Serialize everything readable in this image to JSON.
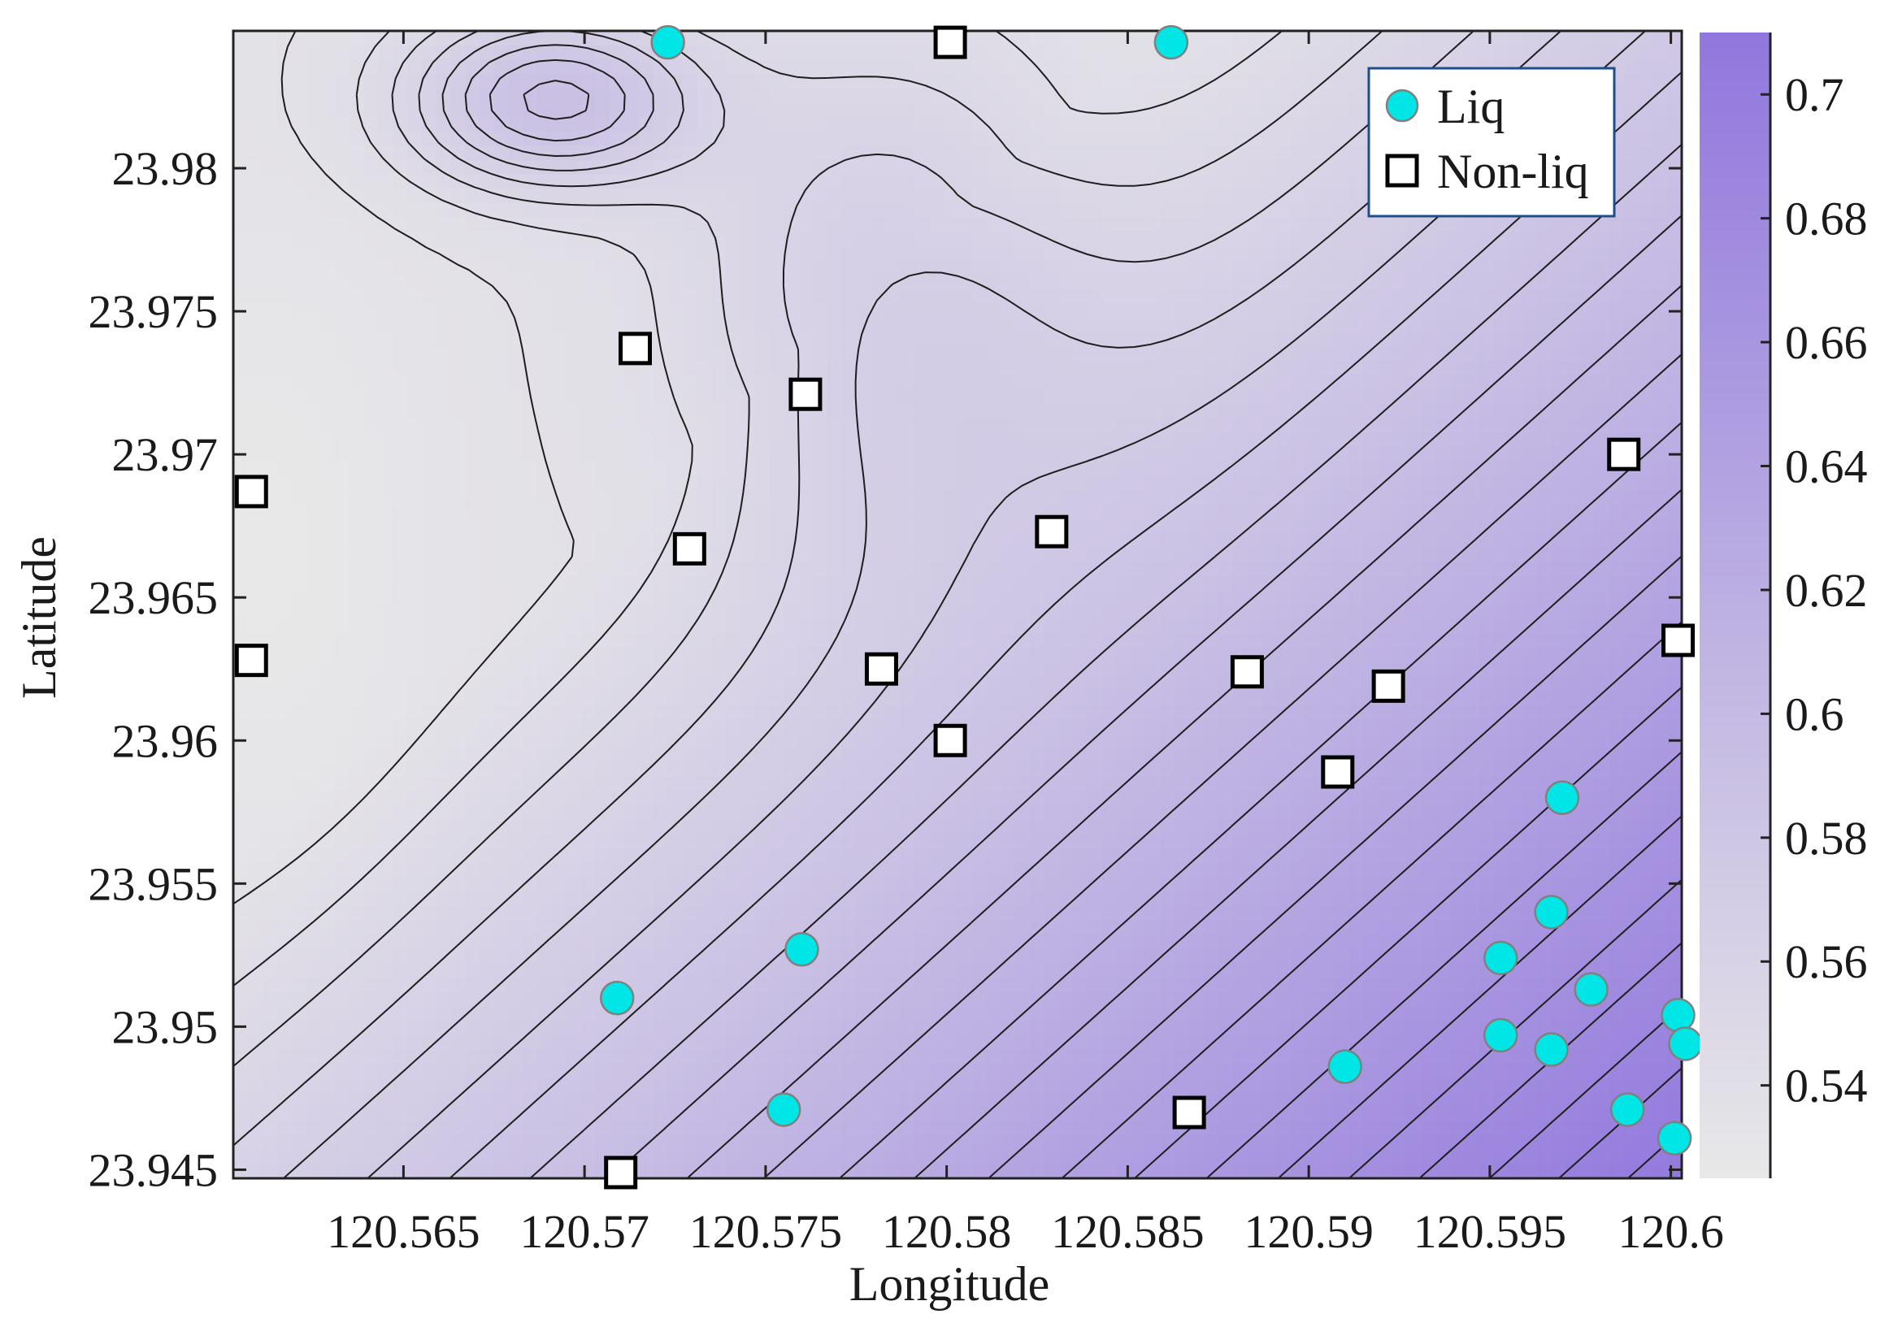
{
  "chart_data": {
    "type": "contour",
    "xlabel": "Longitude",
    "ylabel": "Latitude",
    "xlim": [
      120.5603,
      120.6003
    ],
    "ylim": [
      23.9447,
      23.9848
    ],
    "x_ticks": [
      120.565,
      120.57,
      120.575,
      120.58,
      120.585,
      120.59,
      120.595,
      120.6
    ],
    "x_tick_labels": [
      "120.565",
      "120.57",
      "120.575",
      "120.58",
      "120.585",
      "120.59",
      "120.595",
      "120.6"
    ],
    "y_ticks": [
      23.945,
      23.95,
      23.955,
      23.96,
      23.965,
      23.97,
      23.975,
      23.98
    ],
    "y_tick_labels": [
      "23.945",
      "23.95",
      "23.955",
      "23.96",
      "23.965",
      "23.97",
      "23.975",
      "23.98"
    ],
    "colorbar": {
      "range": [
        0.525,
        0.71
      ],
      "ticks": [
        0.54,
        0.56,
        0.58,
        0.6,
        0.62,
        0.64,
        0.66,
        0.68,
        0.7
      ],
      "tick_labels": [
        "0.54",
        "0.56",
        "0.58",
        "0.6",
        "0.62",
        "0.64",
        "0.66",
        "0.68",
        "0.7"
      ],
      "color_low": "#e8e8e8",
      "color_high": "#9177dd"
    },
    "legend": {
      "placement": "top-right"
    },
    "series": [
      {
        "name": "Liq",
        "marker": "circle",
        "color": "#00e5e5",
        "points": [
          [
            120.5723,
            23.9844
          ],
          [
            120.5862,
            23.9844
          ],
          [
            120.5709,
            23.951
          ],
          [
            120.576,
            23.9527
          ],
          [
            120.5755,
            23.9471
          ],
          [
            120.591,
            23.9486
          ],
          [
            120.5953,
            23.9497
          ],
          [
            120.5967,
            23.9492
          ],
          [
            120.5953,
            23.9524
          ],
          [
            120.5967,
            23.954
          ],
          [
            120.5978,
            23.9513
          ],
          [
            120.597,
            23.958
          ],
          [
            120.5988,
            23.9471
          ],
          [
            120.6001,
            23.9461
          ],
          [
            120.6002,
            23.9504
          ],
          [
            120.6004,
            23.9494
          ]
        ]
      },
      {
        "name": "Non-liq",
        "marker": "square",
        "color": "#ffffff",
        "points": [
          [
            120.5801,
            23.9844
          ],
          [
            120.5714,
            23.9737
          ],
          [
            120.5761,
            23.9721
          ],
          [
            120.5608,
            23.9687
          ],
          [
            120.5729,
            23.9667
          ],
          [
            120.5608,
            23.9628
          ],
          [
            120.5782,
            23.9625
          ],
          [
            120.5801,
            23.96
          ],
          [
            120.5829,
            23.9673
          ],
          [
            120.5883,
            23.9624
          ],
          [
            120.5922,
            23.9619
          ],
          [
            120.5908,
            23.9589
          ],
          [
            120.5987,
            23.97
          ],
          [
            120.6002,
            23.9635
          ],
          [
            120.5867,
            23.947
          ],
          [
            120.571,
            23.9449
          ]
        ]
      }
    ]
  }
}
